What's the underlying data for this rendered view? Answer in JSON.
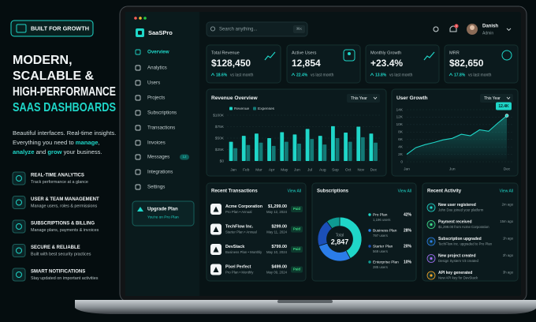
{
  "promo": {
    "badge": "BUILT FOR GROWTH",
    "headline": [
      "MODERN,",
      "SCALABLE &",
      "HIGH-PERFORMANCE",
      "SAAS DASHBOARDS"
    ],
    "description": [
      [
        {
          "text": "Beautiful interfaces. Real-time insights."
        }
      ],
      [
        {
          "text": "Everything you need to "
        },
        {
          "text": "manage",
          "highlight": true
        },
        {
          "text": ","
        }
      ],
      [
        {
          "text": "analyze",
          "highlight": true
        },
        {
          "text": " and "
        },
        {
          "text": "grow",
          "highlight": true
        },
        {
          "text": " your business."
        }
      ]
    ],
    "features": [
      {
        "title": "REAL-TIME ANALYTICS",
        "text": "Track performance at a glance"
      },
      {
        "title": "USER & TEAM MANAGEMENT",
        "text": "Manage users, roles & permissions"
      },
      {
        "title": "SUBSCRIPTIONS & BILLING",
        "text": "Manage plans, payments & invoices"
      },
      {
        "title": "SECURE & RELIABLE",
        "text": "Built with best security practices"
      },
      {
        "title": "SMART NOTIFICATIONS",
        "text": "Stay updated on important activities"
      }
    ]
  },
  "dashboard": {
    "brand": "SaaSPro",
    "nav": [
      {
        "label": "Overview",
        "active": true
      },
      {
        "label": "Analytics"
      },
      {
        "label": "Users"
      },
      {
        "label": "Projects"
      },
      {
        "label": "Subscriptions"
      },
      {
        "label": "Transactions"
      },
      {
        "label": "Invoices"
      },
      {
        "label": "Messages",
        "badge": "12"
      },
      {
        "label": "Integrations"
      },
      {
        "label": "Settings"
      }
    ],
    "upgrade": {
      "title": "Upgrade Plan",
      "text": "You're on Pro Plan"
    },
    "search": {
      "placeholder": "Search anything...",
      "shortcut": "⌘K"
    },
    "notifications": "3",
    "user": {
      "name": "Danish",
      "role": "Admin"
    },
    "stats": [
      {
        "label": "Total Revenue",
        "value": "$128,450",
        "change": "18.6%",
        "note": "vs last month"
      },
      {
        "label": "Active Users",
        "value": "12,854",
        "change": "22.4%",
        "note": "vs last month"
      },
      {
        "label": "Monthly Growth",
        "value": "+23.4%",
        "change": "13.8%",
        "note": "vs last month"
      },
      {
        "label": "MRR",
        "value": "$82,650",
        "change": "17.8%",
        "note": "vs last month"
      }
    ],
    "transactions": {
      "title": "Recent Transactions",
      "action": "View All",
      "rows": [
        {
          "name": "Acme Corporation",
          "plan": "Pro Plan • Annual",
          "amount": "$1,299.00",
          "date": "May 12, 2024",
          "status": "Paid"
        },
        {
          "name": "TechFlow Inc.",
          "plan": "Starter Plan • Annual",
          "amount": "$299.00",
          "date": "May 11, 2024",
          "status": "Paid"
        },
        {
          "name": "DevStack",
          "plan": "Business Plan • Monthly",
          "amount": "$799.00",
          "date": "May 10, 2024",
          "status": "Paid"
        },
        {
          "name": "Pixel Perfect",
          "plan": "Pro Plan • Monthly",
          "amount": "$499.00",
          "date": "May 09, 2024",
          "status": "Paid"
        }
      ]
    },
    "activity": {
      "title": "Recent Activity",
      "action": "View All",
      "items": [
        {
          "title": "New user registered",
          "text": "John Doe joined your platform",
          "time": "2m ago"
        },
        {
          "title": "Payment received",
          "text": "$1,299.00 from Acme Corporation",
          "time": "15m ago"
        },
        {
          "title": "Subscription upgraded",
          "text": "TechFlow Inc. upgraded to Pro Plan",
          "time": "1h ago"
        },
        {
          "title": "New project created",
          "text": "Design System V3 created",
          "time": "2h ago"
        },
        {
          "title": "API key generated",
          "text": "New API key for DevStack",
          "time": "3h ago"
        }
      ]
    }
  },
  "chart_data": [
    {
      "type": "bar",
      "title": "Revenue Overview",
      "filter": "This Year",
      "categories": [
        "Jan",
        "Feb",
        "Mar",
        "Apr",
        "May",
        "Jun",
        "Jul",
        "Aug",
        "Sep",
        "Oct",
        "Nov",
        "Dec"
      ],
      "series": [
        {
          "name": "Revenue",
          "color": "#1fd6c8",
          "values": [
            42000,
            55000,
            60000,
            50000,
            63000,
            58000,
            70000,
            55000,
            76000,
            62000,
            75000,
            60000
          ]
        },
        {
          "name": "Expenses",
          "color": "#137a76",
          "values": [
            28000,
            35000,
            40000,
            33000,
            42000,
            38000,
            48000,
            36000,
            50000,
            42000,
            52000,
            40000
          ]
        }
      ],
      "ylim": [
        0,
        100000
      ],
      "yticks": [
        {
          "value": 0,
          "label": "$0"
        },
        {
          "value": 25000,
          "label": "$25K"
        },
        {
          "value": 50000,
          "label": "$50K"
        },
        {
          "value": 75000,
          "label": "$75K"
        },
        {
          "value": 100000,
          "label": "$100K"
        }
      ],
      "grid": true
    },
    {
      "type": "line",
      "title": "User Growth",
      "filter": "This Year",
      "categories": [
        "Jan",
        null,
        null,
        null,
        null,
        "Jun",
        null,
        null,
        null,
        null,
        null,
        "Dec"
      ],
      "series": [
        {
          "name": "Users",
          "color": "#1fd6c8",
          "values": [
            2000,
            3800,
            4600,
            5200,
            5900,
            6300,
            7400,
            7000,
            8600,
            8200,
            10400,
            12400
          ],
          "value_labels": [
            null,
            null,
            null,
            null,
            null,
            null,
            null,
            null,
            null,
            null,
            null,
            "12.4K"
          ]
        }
      ],
      "ylim": [
        0,
        14000
      ],
      "yticks": [
        0,
        {
          "value": 2000,
          "label": "2K"
        },
        {
          "value": 4000,
          "label": "4K"
        },
        {
          "value": 6000,
          "label": "6K"
        },
        {
          "value": 8000,
          "label": "8K"
        },
        {
          "value": 10000,
          "label": "10K"
        },
        {
          "value": 12000,
          "label": "12K"
        },
        {
          "value": 14000,
          "label": "14K"
        }
      ],
      "grid": true
    },
    {
      "type": "donut",
      "title": "Subscriptions",
      "action": "View All",
      "center_label": "Total",
      "center_value": "2,847",
      "categories": [
        "Pro Plan",
        "Business Plan",
        "Starter Plan",
        "Enterprise Plan"
      ],
      "values": [
        42,
        28,
        20,
        10
      ],
      "value_labels": [
        "42%",
        "28%",
        "20%",
        "10%"
      ],
      "users": [
        "1,196 users",
        "797 users",
        "569 users",
        "285 users"
      ],
      "colors": [
        "#1fd6c8",
        "#2b7de9",
        "#1b4fb8",
        "#0f9a92"
      ]
    }
  ]
}
